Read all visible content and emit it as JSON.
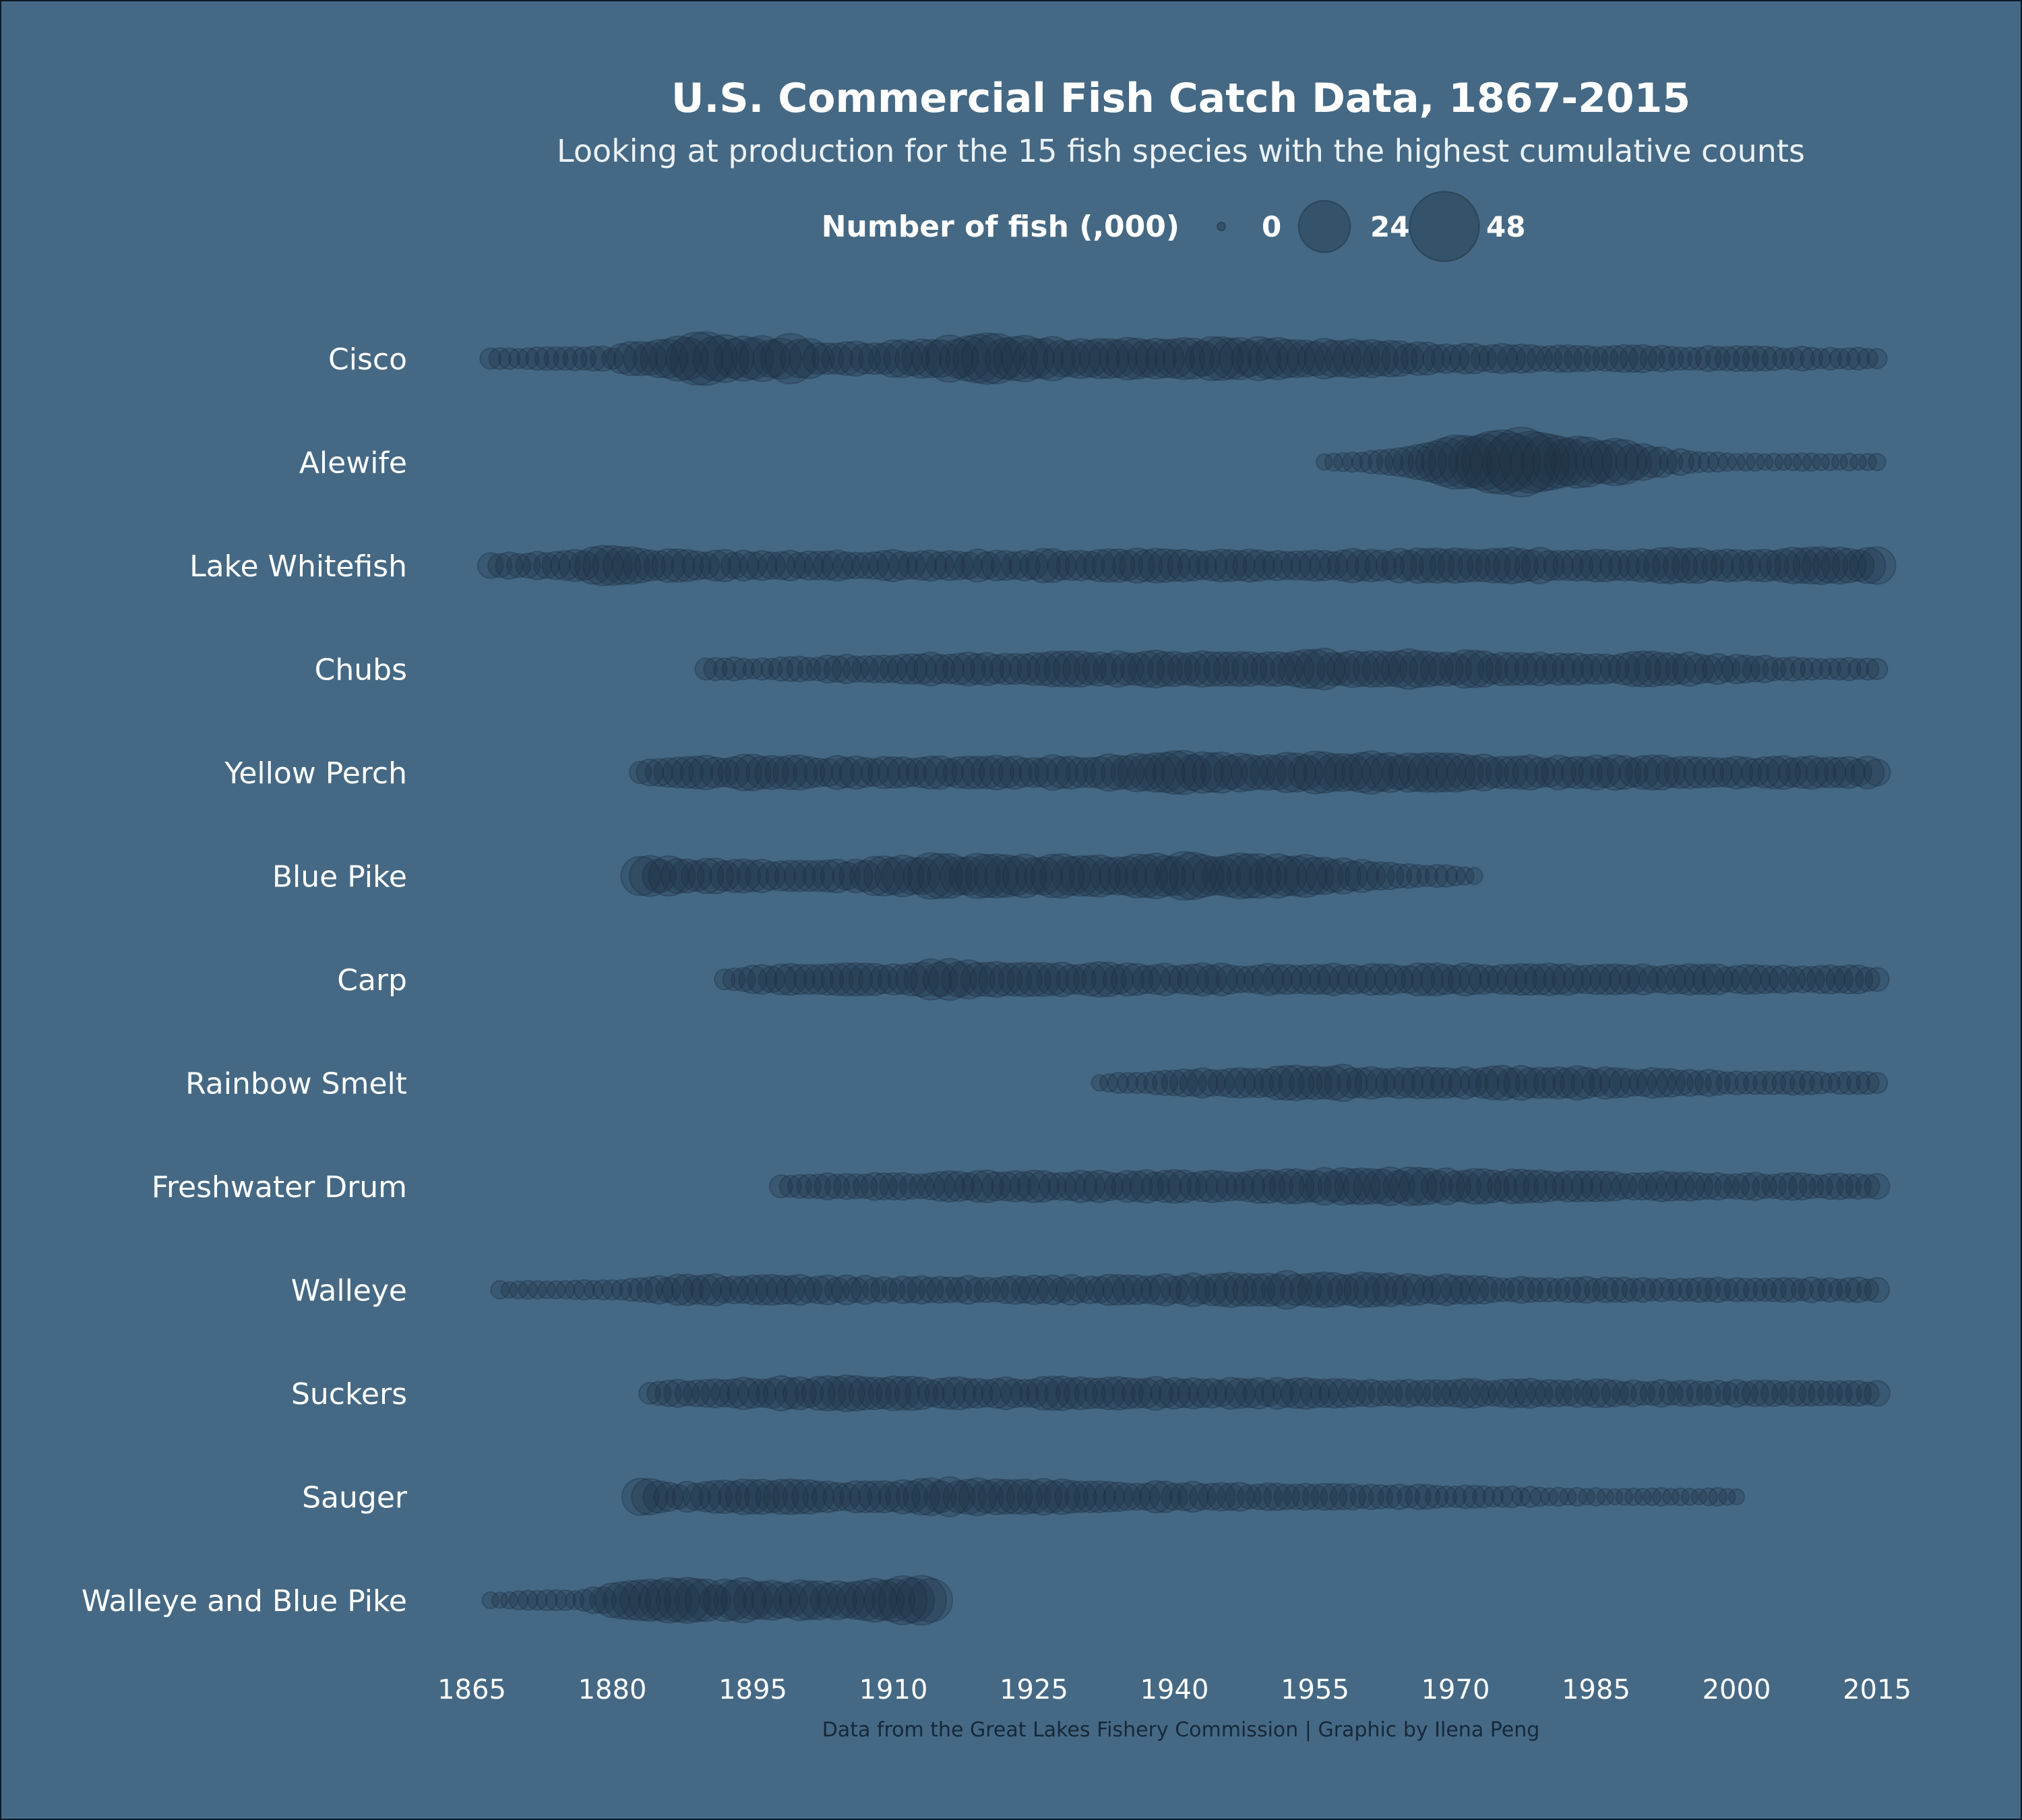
{
  "chart_data": {
    "type": "scatter",
    "title": "U.S. Commercial Fish Catch Data, 1867-2015",
    "subtitle": "Looking at production for the 15 fish species with the highest cumulative counts",
    "caption": "Data from the Great Lakes Fishery Commission | Graphic by Ilena Peng",
    "legend": {
      "title": "Number of fish (,000)",
      "sizes": [
        0,
        24,
        48
      ],
      "labels": [
        "0",
        "24",
        "48"
      ],
      "placement": "top"
    },
    "x_ticks": [
      1865,
      1880,
      1895,
      1910,
      1925,
      1940,
      1955,
      1970,
      1985,
      2000,
      2015
    ],
    "xlim": [
      1865,
      2015
    ],
    "colors": {
      "background": "#456984",
      "marker": "#1c2f42",
      "text": "#ffffff"
    },
    "series": [
      {
        "name": "Cisco",
        "start": 1867,
        "end": 2015,
        "values": [
          [
            1867,
            2
          ],
          [
            1880,
            3
          ],
          [
            1885,
            12
          ],
          [
            1889,
            22
          ],
          [
            1890,
            26
          ],
          [
            1893,
            16
          ],
          [
            1897,
            14
          ],
          [
            1899,
            18
          ],
          [
            1902,
            6
          ],
          [
            1909,
            9
          ],
          [
            1913,
            13
          ],
          [
            1918,
            18
          ],
          [
            1922,
            18
          ],
          [
            1930,
            12
          ],
          [
            1940,
            12
          ],
          [
            1950,
            13
          ],
          [
            1960,
            10
          ],
          [
            1970,
            5
          ],
          [
            1990,
            4
          ],
          [
            2015,
            2
          ]
        ]
      },
      {
        "name": "Alewife",
        "start": 1956,
        "end": 2015,
        "values": [
          [
            1956,
            1
          ],
          [
            1962,
            3
          ],
          [
            1966,
            7
          ],
          [
            1969,
            18
          ],
          [
            1972,
            28
          ],
          [
            1976,
            40
          ],
          [
            1979,
            32
          ],
          [
            1984,
            20
          ],
          [
            1990,
            10
          ],
          [
            1993,
            4
          ],
          [
            2000,
            1
          ],
          [
            2015,
            1
          ]
        ]
      },
      {
        "name": "Lake Whitefish",
        "start": 1867,
        "end": 2015,
        "values": [
          [
            1867,
            3
          ],
          [
            1877,
            6
          ],
          [
            1879,
            11
          ],
          [
            1885,
            7
          ],
          [
            1889,
            6
          ],
          [
            1902,
            5
          ],
          [
            1910,
            6
          ],
          [
            1930,
            7
          ],
          [
            1948,
            7
          ],
          [
            1960,
            7
          ],
          [
            1980,
            8
          ],
          [
            2000,
            8
          ],
          [
            2015,
            9
          ]
        ]
      },
      {
        "name": "Chubs",
        "start": 1890,
        "end": 2015,
        "values": [
          [
            1890,
            3
          ],
          [
            1895,
            2
          ],
          [
            1910,
            6
          ],
          [
            1925,
            8
          ],
          [
            1945,
            9
          ],
          [
            1957,
            11
          ],
          [
            1970,
            10
          ],
          [
            1980,
            6
          ],
          [
            1993,
            8
          ],
          [
            2005,
            3
          ],
          [
            2015,
            2
          ]
        ]
      },
      {
        "name": "Yellow Perch",
        "start": 1883,
        "end": 2015,
        "values": [
          [
            1883,
            3
          ],
          [
            1890,
            7
          ],
          [
            1895,
            8
          ],
          [
            1910,
            6
          ],
          [
            1935,
            9
          ],
          [
            1938,
            14
          ],
          [
            1950,
            8
          ],
          [
            1955,
            13
          ],
          [
            1962,
            13
          ],
          [
            1975,
            8
          ],
          [
            1990,
            7
          ],
          [
            2015,
            6
          ]
        ]
      },
      {
        "name": "Blue Pike",
        "start": 1883,
        "end": 1972,
        "values": [
          [
            1883,
            12
          ],
          [
            1889,
            8
          ],
          [
            1895,
            6
          ],
          [
            1905,
            7
          ],
          [
            1915,
            16
          ],
          [
            1925,
            13
          ],
          [
            1935,
            15
          ],
          [
            1940,
            16
          ],
          [
            1945,
            16
          ],
          [
            1950,
            15
          ],
          [
            1957,
            10
          ],
          [
            1963,
            4
          ],
          [
            1972,
            1
          ]
        ]
      },
      {
        "name": "Carp",
        "start": 1892,
        "end": 2015,
        "values": [
          [
            1892,
            2
          ],
          [
            1898,
            6
          ],
          [
            1910,
            7
          ],
          [
            1915,
            12
          ],
          [
            1925,
            8
          ],
          [
            1945,
            6
          ],
          [
            1960,
            6
          ],
          [
            1980,
            6
          ],
          [
            2000,
            5
          ],
          [
            2015,
            4
          ]
        ]
      },
      {
        "name": "Rainbow Smelt",
        "start": 1932,
        "end": 2015,
        "values": [
          [
            1932,
            1
          ],
          [
            1938,
            3
          ],
          [
            1942,
            5
          ],
          [
            1950,
            7
          ],
          [
            1955,
            9
          ],
          [
            1962,
            7
          ],
          [
            1970,
            6
          ],
          [
            1980,
            8
          ],
          [
            1990,
            5
          ],
          [
            2000,
            3
          ],
          [
            2015,
            2
          ]
        ]
      },
      {
        "name": "Freshwater Drum",
        "start": 1898,
        "end": 2015,
        "values": [
          [
            1898,
            3
          ],
          [
            1910,
            4
          ],
          [
            1920,
            6
          ],
          [
            1935,
            6
          ],
          [
            1950,
            7
          ],
          [
            1963,
            10
          ],
          [
            1975,
            7
          ],
          [
            1990,
            5
          ],
          [
            2005,
            4
          ],
          [
            2015,
            3
          ]
        ]
      },
      {
        "name": "Walleye",
        "start": 1868,
        "end": 2015,
        "values": [
          [
            1868,
            1
          ],
          [
            1880,
            2
          ],
          [
            1885,
            5
          ],
          [
            1895,
            6
          ],
          [
            1910,
            4
          ],
          [
            1930,
            5
          ],
          [
            1945,
            7
          ],
          [
            1955,
            10
          ],
          [
            1962,
            7
          ],
          [
            1975,
            4
          ],
          [
            1990,
            3
          ],
          [
            2015,
            3
          ]
        ]
      },
      {
        "name": "Suckers",
        "start": 1884,
        "end": 2015,
        "values": [
          [
            1884,
            2
          ],
          [
            1890,
            6
          ],
          [
            1897,
            7
          ],
          [
            1905,
            8
          ],
          [
            1915,
            6
          ],
          [
            1930,
            7
          ],
          [
            1945,
            6
          ],
          [
            1960,
            5
          ],
          [
            1975,
            5
          ],
          [
            1990,
            4
          ],
          [
            2015,
            3
          ]
        ]
      },
      {
        "name": "Sauger",
        "start": 1883,
        "end": 2000,
        "values": [
          [
            1883,
            12
          ],
          [
            1887,
            4
          ],
          [
            1891,
            8
          ],
          [
            1897,
            9
          ],
          [
            1905,
            5
          ],
          [
            1916,
            10
          ],
          [
            1925,
            8
          ],
          [
            1935,
            6
          ],
          [
            1950,
            4
          ],
          [
            1965,
            3
          ],
          [
            1975,
            2
          ],
          [
            1985,
            1
          ],
          [
            2000,
            1
          ]
        ]
      },
      {
        "name": "Walleye and Blue Pike",
        "start": 1867,
        "end": 1914,
        "values": [
          [
            1867,
            1
          ],
          [
            1877,
            2
          ],
          [
            1883,
            12
          ],
          [
            1887,
            16
          ],
          [
            1889,
            18
          ],
          [
            1891,
            8
          ],
          [
            1893,
            15
          ],
          [
            1897,
            12
          ],
          [
            1899,
            11
          ],
          [
            1903,
            10
          ],
          [
            1909,
            14
          ],
          [
            1914,
            19
          ]
        ]
      }
    ]
  }
}
